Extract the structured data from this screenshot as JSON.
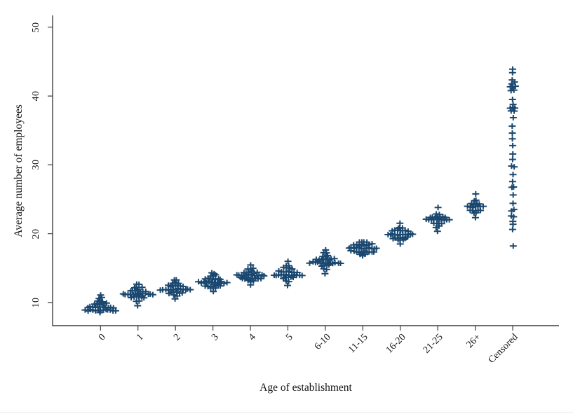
{
  "chart_data": {
    "type": "scatter",
    "subtype": "stacked-dot-plot",
    "title": "",
    "xlabel": "Age of establishment",
    "ylabel": "Average number of employees",
    "ylim": [
      6.5,
      52
    ],
    "yticks": [
      10,
      20,
      30,
      40,
      50
    ],
    "ytick_labels": [
      "10",
      "20",
      "30",
      "40",
      "50"
    ],
    "categories": [
      "0",
      "1",
      "2",
      "3",
      "4",
      "5",
      "6-10",
      "11-15",
      "16-20",
      "21-25",
      "26+",
      "Censored"
    ],
    "grid": "off",
    "legend": "none",
    "marker": "plus",
    "marker_color": "#1A476F",
    "axis_color": "#3f3f3f",
    "clusters": [
      {
        "label": "0",
        "bins": [
          [
            8.4,
            1
          ],
          [
            8.9,
            13
          ],
          [
            9.3,
            11
          ],
          [
            9.8,
            6
          ],
          [
            10.2,
            3
          ],
          [
            10.7,
            2
          ],
          [
            11.1,
            1
          ]
        ]
      },
      {
        "label": "1",
        "bins": [
          [
            9.5,
            1
          ],
          [
            10.3,
            2
          ],
          [
            10.8,
            6
          ],
          [
            11.2,
            13
          ],
          [
            11.7,
            7
          ],
          [
            12.2,
            4
          ],
          [
            12.6,
            2
          ]
        ]
      },
      {
        "label": "2",
        "bins": [
          [
            10.5,
            1
          ],
          [
            11.0,
            2
          ],
          [
            11.4,
            6
          ],
          [
            11.9,
            13
          ],
          [
            12.4,
            7
          ],
          [
            12.9,
            3
          ],
          [
            13.4,
            2
          ]
        ]
      },
      {
        "label": "3",
        "bins": [
          [
            11.5,
            1
          ],
          [
            12.0,
            3
          ],
          [
            12.4,
            7
          ],
          [
            12.9,
            12
          ],
          [
            13.4,
            7
          ],
          [
            13.9,
            3
          ],
          [
            14.3,
            2
          ]
        ]
      },
      {
        "label": "4",
        "bins": [
          [
            12.6,
            1
          ],
          [
            13.1,
            3
          ],
          [
            13.5,
            9
          ],
          [
            14.0,
            12
          ],
          [
            14.4,
            6
          ],
          [
            14.9,
            3
          ],
          [
            15.4,
            1
          ]
        ]
      },
      {
        "label": "5",
        "bins": [
          [
            12.4,
            1
          ],
          [
            13.1,
            2
          ],
          [
            13.6,
            5
          ],
          [
            14.0,
            12
          ],
          [
            14.5,
            8
          ],
          [
            15.0,
            4
          ],
          [
            15.4,
            2
          ],
          [
            15.9,
            1
          ]
        ]
      },
      {
        "label": "6-10",
        "bins": [
          [
            14.3,
            1
          ],
          [
            14.9,
            2
          ],
          [
            15.4,
            4
          ],
          [
            15.8,
            13
          ],
          [
            16.3,
            8
          ],
          [
            16.8,
            3
          ],
          [
            17.2,
            2
          ],
          [
            17.7,
            1
          ]
        ]
      },
      {
        "label": "11-15",
        "bins": [
          [
            16.9,
            3
          ],
          [
            17.4,
            10
          ],
          [
            17.9,
            12
          ],
          [
            18.4,
            8
          ],
          [
            18.9,
            4
          ]
        ]
      },
      {
        "label": "16-20",
        "bins": [
          [
            18.5,
            1
          ],
          [
            19.0,
            3
          ],
          [
            19.4,
            7
          ],
          [
            19.9,
            11
          ],
          [
            20.4,
            7
          ],
          [
            20.9,
            3
          ],
          [
            21.4,
            1
          ]
        ]
      },
      {
        "label": "21-25",
        "bins": [
          [
            20.4,
            1
          ],
          [
            21.0,
            2
          ],
          [
            21.5,
            4
          ],
          [
            22.0,
            10
          ],
          [
            22.4,
            7
          ],
          [
            22.9,
            2
          ],
          [
            23.7,
            1
          ]
        ]
      },
      {
        "label": "26+",
        "bins": [
          [
            22.4,
            1
          ],
          [
            23.0,
            2
          ],
          [
            23.4,
            5
          ],
          [
            23.9,
            7
          ],
          [
            24.3,
            4
          ],
          [
            24.8,
            2
          ],
          [
            25.8,
            1
          ]
        ]
      },
      {
        "label": "Censored",
        "bins": [
          [
            18.3,
            1
          ],
          [
            20.6,
            1
          ],
          [
            21.3,
            1
          ],
          [
            21.9,
            1
          ],
          [
            22.5,
            2
          ],
          [
            23.4,
            2
          ],
          [
            24.5,
            1
          ],
          [
            25.6,
            1
          ],
          [
            26.7,
            2
          ],
          [
            27.6,
            1
          ],
          [
            28.6,
            1
          ],
          [
            29.7,
            2
          ],
          [
            30.7,
            1
          ],
          [
            31.7,
            1
          ],
          [
            32.7,
            1
          ],
          [
            33.7,
            1
          ],
          [
            34.7,
            1
          ],
          [
            35.7,
            1
          ],
          [
            36.8,
            1
          ],
          [
            37.8,
            2
          ],
          [
            38.3,
            3
          ],
          [
            38.9,
            1
          ],
          [
            39.6,
            1
          ],
          [
            40.8,
            2
          ],
          [
            41.3,
            3
          ],
          [
            41.9,
            2
          ],
          [
            42.4,
            1
          ],
          [
            43.3,
            1
          ],
          [
            43.9,
            1
          ]
        ]
      }
    ]
  }
}
